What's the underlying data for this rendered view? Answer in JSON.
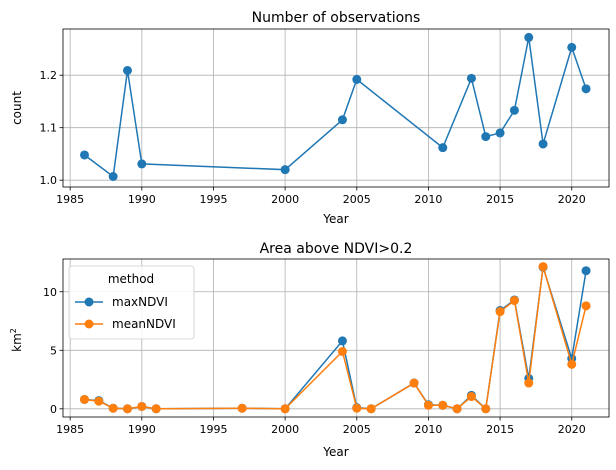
{
  "chart_data": [
    {
      "type": "line",
      "title": "Number of observations",
      "xlabel": "Year",
      "ylabel": "count",
      "xlim": [
        1984.5,
        2022.6
      ],
      "ylim": [
        0.987,
        1.288
      ],
      "xticks": [
        1985,
        1990,
        1995,
        2000,
        2005,
        2010,
        2015,
        2020
      ],
      "yticks": [
        1.0,
        1.1,
        1.2
      ],
      "ytick_labels": [
        "1.0",
        "1.1",
        "1.2"
      ],
      "grid": true,
      "series": [
        {
          "color": "#1f77b4",
          "marker": "circle",
          "x": [
            1986,
            1988,
            1989,
            1990,
            2000,
            2004,
            2005,
            2011,
            2013,
            2014,
            2015,
            2016,
            2017,
            2018,
            2020,
            2021
          ],
          "y": [
            1.048,
            1.007,
            1.209,
            1.031,
            1.02,
            1.115,
            1.192,
            1.062,
            1.194,
            1.083,
            1.09,
            1.133,
            1.272,
            1.069,
            1.253,
            1.174
          ]
        }
      ]
    },
    {
      "type": "line",
      "title": "Area above NDVI>0.2",
      "xlabel": "Year",
      "ylabel": "km",
      "ylabel_sup": "2",
      "xlim": [
        1984.5,
        2022.6
      ],
      "ylim": [
        -0.7,
        12.8
      ],
      "xticks": [
        1985,
        1990,
        1995,
        2000,
        2005,
        2010,
        2015,
        2020
      ],
      "yticks": [
        0,
        5,
        10
      ],
      "grid": true,
      "legend": {
        "title": "method",
        "position": "upper-left"
      },
      "x": [
        1986,
        1987,
        1988,
        1989,
        1990,
        1991,
        1997,
        2000,
        2004,
        2005,
        2006,
        2009,
        2010,
        2011,
        2012,
        2013,
        2014,
        2015,
        2016,
        2017,
        2018,
        2020,
        2021
      ],
      "series": [
        {
          "name": "maxNDVI",
          "color": "#1f77b4",
          "marker": "circle",
          "values": [
            0.8,
            0.7,
            0.05,
            0.0,
            0.2,
            0.0,
            0.05,
            0.0,
            5.8,
            0.1,
            0.0,
            2.2,
            0.35,
            0.3,
            0.0,
            1.15,
            0.0,
            8.4,
            9.3,
            2.6,
            12.1,
            4.3,
            11.8
          ]
        },
        {
          "name": "meanNDVI",
          "color": "#ff7f0e",
          "marker": "circle",
          "values": [
            0.8,
            0.65,
            0.05,
            0.0,
            0.2,
            0.0,
            0.05,
            0.0,
            4.9,
            0.05,
            0.0,
            2.2,
            0.3,
            0.3,
            0.0,
            1.05,
            0.0,
            8.3,
            9.25,
            2.2,
            12.15,
            3.8,
            8.8
          ]
        }
      ]
    }
  ]
}
